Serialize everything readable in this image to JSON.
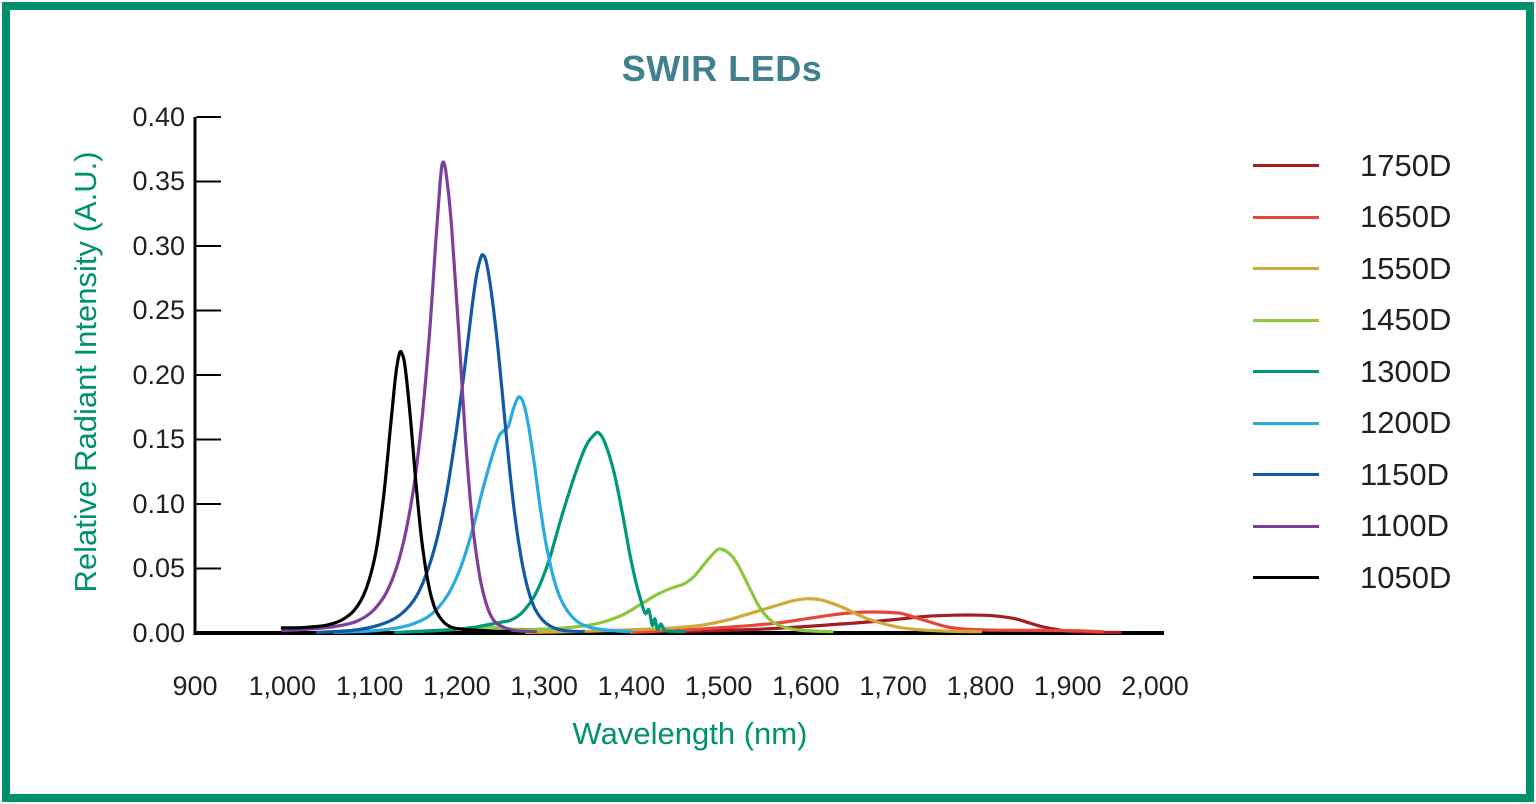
{
  "frame": {
    "border_color": "#00906e",
    "background": "#ffffff"
  },
  "title": {
    "text": "SWIR LEDs",
    "color": "#41808f"
  },
  "axes": {
    "x": {
      "label": "Wavelength (nm)",
      "label_color": "#00926d",
      "min": 900,
      "max": 2000,
      "tick_step": 100,
      "tick_values": [
        900,
        1000,
        1100,
        1200,
        1300,
        1400,
        1500,
        1600,
        1700,
        1800,
        1900,
        2000
      ],
      "tick_labels": [
        "900",
        "1,000",
        "1,100",
        "1,200",
        "1,300",
        "1,400",
        "1,500",
        "1,600",
        "1,700",
        "1,800",
        "1,900",
        "2,000"
      ]
    },
    "y": {
      "label": "Relative Radiant Intensity (A.U.)",
      "label_color": "#00926d",
      "min": 0,
      "max": 0.4,
      "tick_step": 0.05,
      "tick_values": [
        0.4,
        0.35,
        0.3,
        0.25,
        0.2,
        0.15,
        0.1,
        0.05,
        0.0
      ],
      "tick_labels": [
        "0.40",
        "0.35",
        "0.30",
        "0.25",
        "0.20",
        "0.15",
        "0.10",
        "0.05",
        "0.00"
      ]
    }
  },
  "chart_data": {
    "type": "line",
    "title": "SWIR LEDs",
    "xlabel": "Wavelength (nm)",
    "ylabel": "Relative Radiant Intensity (A.U.)",
    "xlim": [
      900,
      2000
    ],
    "ylim": [
      0,
      0.4
    ],
    "grid": false,
    "legend_position": "right",
    "axis_color": "#000000",
    "series": [
      {
        "name": "1750D",
        "color": "#a31d21",
        "peak_nm": 1790,
        "peak_value": 0.014,
        "points": [
          [
            1450,
            0.001
          ],
          [
            1500,
            0.002
          ],
          [
            1550,
            0.003
          ],
          [
            1600,
            0.005
          ],
          [
            1640,
            0.007
          ],
          [
            1680,
            0.009
          ],
          [
            1710,
            0.011
          ],
          [
            1740,
            0.013
          ],
          [
            1770,
            0.0138
          ],
          [
            1800,
            0.0138
          ],
          [
            1820,
            0.013
          ],
          [
            1840,
            0.011
          ],
          [
            1855,
            0.008
          ],
          [
            1870,
            0.005
          ],
          [
            1885,
            0.003
          ],
          [
            1900,
            0.0015
          ],
          [
            1930,
            0.0006
          ],
          [
            1960,
            0.0003
          ]
        ]
      },
      {
        "name": "1650D",
        "color": "#e8463a",
        "peak_nm": 1680,
        "peak_value": 0.0165,
        "points": [
          [
            1400,
            0.0005
          ],
          [
            1450,
            0.002
          ],
          [
            1500,
            0.004
          ],
          [
            1540,
            0.006
          ],
          [
            1570,
            0.008
          ],
          [
            1600,
            0.011
          ],
          [
            1630,
            0.014
          ],
          [
            1655,
            0.0158
          ],
          [
            1675,
            0.0163
          ],
          [
            1695,
            0.016
          ],
          [
            1710,
            0.015
          ],
          [
            1725,
            0.012
          ],
          [
            1740,
            0.009
          ],
          [
            1760,
            0.005
          ],
          [
            1775,
            0.0035
          ],
          [
            1790,
            0.0027
          ],
          [
            1820,
            0.0022
          ],
          [
            1870,
            0.002
          ],
          [
            1910,
            0.0018
          ],
          [
            1940,
            0.001
          ]
        ]
      },
      {
        "name": "1550D",
        "color": "#d0a83c",
        "peak_nm": 1600,
        "peak_value": 0.027,
        "points": [
          [
            1280,
            0.0005
          ],
          [
            1330,
            0.001
          ],
          [
            1380,
            0.002
          ],
          [
            1420,
            0.003
          ],
          [
            1450,
            0.004
          ],
          [
            1480,
            0.006
          ],
          [
            1510,
            0.01
          ],
          [
            1540,
            0.016
          ],
          [
            1565,
            0.021
          ],
          [
            1585,
            0.025
          ],
          [
            1600,
            0.0265
          ],
          [
            1615,
            0.026
          ],
          [
            1630,
            0.023
          ],
          [
            1645,
            0.019
          ],
          [
            1660,
            0.014
          ],
          [
            1675,
            0.01
          ],
          [
            1690,
            0.007
          ],
          [
            1710,
            0.004
          ],
          [
            1730,
            0.0025
          ],
          [
            1760,
            0.0015
          ],
          [
            1800,
            0.001
          ]
        ]
      },
      {
        "name": "1450D",
        "color": "#8dc63f",
        "peak_nm": 1500,
        "peak_value": 0.065,
        "points": [
          [
            1140,
            0.001
          ],
          [
            1180,
            0.002
          ],
          [
            1220,
            0.004
          ],
          [
            1240,
            0.0045
          ],
          [
            1265,
            0.003
          ],
          [
            1300,
            0.003
          ],
          [
            1340,
            0.005
          ],
          [
            1365,
            0.008
          ],
          [
            1390,
            0.014
          ],
          [
            1410,
            0.022
          ],
          [
            1430,
            0.03
          ],
          [
            1447,
            0.035
          ],
          [
            1460,
            0.038
          ],
          [
            1472,
            0.044
          ],
          [
            1483,
            0.053
          ],
          [
            1493,
            0.061
          ],
          [
            1500,
            0.065
          ],
          [
            1507,
            0.064
          ],
          [
            1516,
            0.059
          ],
          [
            1526,
            0.048
          ],
          [
            1536,
            0.034
          ],
          [
            1546,
            0.021
          ],
          [
            1556,
            0.012
          ],
          [
            1566,
            0.007
          ],
          [
            1578,
            0.004
          ],
          [
            1595,
            0.002
          ],
          [
            1630,
            0.001
          ]
        ]
      },
      {
        "name": "1300D",
        "color": "#009879",
        "peak_nm": 1362,
        "peak_value": 0.155,
        "points": [
          [
            1130,
            0.0005
          ],
          [
            1180,
            0.002
          ],
          [
            1215,
            0.004
          ],
          [
            1240,
            0.007
          ],
          [
            1252,
            0.0085
          ],
          [
            1262,
            0.01
          ],
          [
            1275,
            0.016
          ],
          [
            1290,
            0.03
          ],
          [
            1305,
            0.055
          ],
          [
            1320,
            0.09
          ],
          [
            1335,
            0.122
          ],
          [
            1348,
            0.145
          ],
          [
            1358,
            0.154
          ],
          [
            1363,
            0.155
          ],
          [
            1370,
            0.147
          ],
          [
            1380,
            0.125
          ],
          [
            1390,
            0.092
          ],
          [
            1398,
            0.062
          ],
          [
            1405,
            0.04
          ],
          [
            1411,
            0.025
          ],
          [
            1416,
            0.015
          ],
          [
            1420,
            0.018
          ],
          [
            1424,
            0.006
          ],
          [
            1427,
            0.011
          ],
          [
            1430,
            0.003
          ],
          [
            1434,
            0.007
          ],
          [
            1438,
            0.002
          ],
          [
            1444,
            0.0015
          ],
          [
            1460,
            0.001
          ]
        ]
      },
      {
        "name": "1200D",
        "color": "#29abe2",
        "peak_nm": 1272,
        "peak_value": 0.183,
        "points": [
          [
            1060,
            0.0005
          ],
          [
            1110,
            0.002
          ],
          [
            1145,
            0.006
          ],
          [
            1170,
            0.014
          ],
          [
            1190,
            0.03
          ],
          [
            1205,
            0.052
          ],
          [
            1218,
            0.08
          ],
          [
            1230,
            0.112
          ],
          [
            1240,
            0.136
          ],
          [
            1248,
            0.152
          ],
          [
            1254,
            0.157
          ],
          [
            1259,
            0.16
          ],
          [
            1264,
            0.172
          ],
          [
            1269,
            0.181
          ],
          [
            1272,
            0.183
          ],
          [
            1276,
            0.179
          ],
          [
            1281,
            0.165
          ],
          [
            1288,
            0.135
          ],
          [
            1295,
            0.1
          ],
          [
            1302,
            0.07
          ],
          [
            1310,
            0.045
          ],
          [
            1318,
            0.028
          ],
          [
            1328,
            0.016
          ],
          [
            1340,
            0.008
          ],
          [
            1355,
            0.004
          ],
          [
            1375,
            0.002
          ],
          [
            1400,
            0.001
          ]
        ]
      },
      {
        "name": "1150D",
        "color": "#1158a7",
        "peak_nm": 1228,
        "peak_value": 0.293,
        "points": [
          [
            1040,
            0.0005
          ],
          [
            1080,
            0.002
          ],
          [
            1110,
            0.006
          ],
          [
            1135,
            0.014
          ],
          [
            1155,
            0.03
          ],
          [
            1172,
            0.06
          ],
          [
            1186,
            0.1
          ],
          [
            1198,
            0.15
          ],
          [
            1208,
            0.2
          ],
          [
            1216,
            0.245
          ],
          [
            1222,
            0.275
          ],
          [
            1227,
            0.29
          ],
          [
            1230,
            0.293
          ],
          [
            1234,
            0.287
          ],
          [
            1240,
            0.262
          ],
          [
            1248,
            0.215
          ],
          [
            1256,
            0.158
          ],
          [
            1264,
            0.105
          ],
          [
            1272,
            0.065
          ],
          [
            1280,
            0.038
          ],
          [
            1288,
            0.021
          ],
          [
            1297,
            0.011
          ],
          [
            1308,
            0.005
          ],
          [
            1322,
            0.002
          ],
          [
            1345,
            0.001
          ]
        ]
      },
      {
        "name": "1100D",
        "color": "#7d3f98",
        "peak_nm": 1180,
        "peak_value": 0.365,
        "points": [
          [
            1000,
            0.002
          ],
          [
            1030,
            0.003
          ],
          [
            1060,
            0.005
          ],
          [
            1085,
            0.009
          ],
          [
            1105,
            0.018
          ],
          [
            1122,
            0.035
          ],
          [
            1137,
            0.065
          ],
          [
            1150,
            0.11
          ],
          [
            1160,
            0.165
          ],
          [
            1169,
            0.235
          ],
          [
            1176,
            0.305
          ],
          [
            1181,
            0.35
          ],
          [
            1184,
            0.365
          ],
          [
            1188,
            0.355
          ],
          [
            1194,
            0.315
          ],
          [
            1202,
            0.235
          ],
          [
            1210,
            0.15
          ],
          [
            1218,
            0.085
          ],
          [
            1226,
            0.045
          ],
          [
            1234,
            0.022
          ],
          [
            1242,
            0.01
          ],
          [
            1252,
            0.005
          ],
          [
            1266,
            0.002
          ],
          [
            1290,
            0.001
          ]
        ]
      },
      {
        "name": "1050D",
        "color": "#000000",
        "peak_nm": 1133,
        "peak_value": 0.217,
        "points": [
          [
            1000,
            0.004
          ],
          [
            1015,
            0.004
          ],
          [
            1030,
            0.0045
          ],
          [
            1050,
            0.006
          ],
          [
            1068,
            0.01
          ],
          [
            1083,
            0.018
          ],
          [
            1096,
            0.034
          ],
          [
            1107,
            0.062
          ],
          [
            1116,
            0.105
          ],
          [
            1124,
            0.16
          ],
          [
            1130,
            0.2
          ],
          [
            1134,
            0.216
          ],
          [
            1137,
            0.217
          ],
          [
            1141,
            0.205
          ],
          [
            1147,
            0.165
          ],
          [
            1154,
            0.11
          ],
          [
            1161,
            0.065
          ],
          [
            1168,
            0.036
          ],
          [
            1175,
            0.019
          ],
          [
            1183,
            0.01
          ],
          [
            1192,
            0.005
          ],
          [
            1205,
            0.003
          ],
          [
            1225,
            0.002
          ],
          [
            1260,
            0.001
          ]
        ]
      }
    ]
  },
  "legend": {
    "items": [
      {
        "label": "1750D",
        "color": "#a31d21"
      },
      {
        "label": "1650D",
        "color": "#e8463a"
      },
      {
        "label": "1550D",
        "color": "#d0a83c"
      },
      {
        "label": "1450D",
        "color": "#8dc63f"
      },
      {
        "label": "1300D",
        "color": "#009879"
      },
      {
        "label": "1200D",
        "color": "#29abe2"
      },
      {
        "label": "1150D",
        "color": "#1158a7"
      },
      {
        "label": "1100D",
        "color": "#7d3f98"
      },
      {
        "label": "1050D",
        "color": "#000000"
      }
    ]
  }
}
